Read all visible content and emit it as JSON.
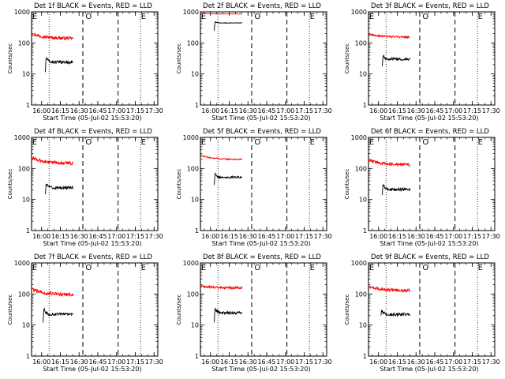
{
  "chart_data": [
    {
      "type": "line",
      "title": "Det 1f BLACK = Events, RED = LLD",
      "xlabel": "Start Time (05-Jul-02 15:53:20)",
      "ylabel": "Counts/sec",
      "ylim": [
        1,
        1000
      ],
      "yscale": "log",
      "xlim": [
        15.866,
        17.55
      ],
      "xticks": [
        "16:00",
        "16:15",
        "16:30",
        "16:45",
        "17:00",
        "17:15",
        "17:30"
      ],
      "yticks": [
        "1",
        "10",
        "100",
        "1000"
      ],
      "markers": [
        {
          "label": "E",
          "t": 15.87,
          "style": "dotted"
        },
        {
          "label": "",
          "t": 16.1,
          "style": "dotted"
        },
        {
          "label": "",
          "t": 16.55,
          "style": "dashed"
        },
        {
          "label": "O",
          "t": 16.58,
          "style": "none"
        },
        {
          "label": "",
          "t": 17.02,
          "style": "dashed"
        },
        {
          "label": "E",
          "t": 17.32,
          "style": "dotted"
        }
      ],
      "series": [
        {
          "name": "LLD",
          "color": "#ff0000",
          "t_start": 15.87,
          "t_end": 16.42,
          "start": 200,
          "level": 140,
          "noise": 0.05
        },
        {
          "name": "Events",
          "color": "#000000",
          "t_start": 16.05,
          "t_end": 16.42,
          "start": 12,
          "peak": 35,
          "level": 24,
          "noise": 0.05
        }
      ]
    },
    {
      "type": "line",
      "title": "Det 2f BLACK = Events, RED = LLD",
      "xlabel": "Start Time (05-Jul-02 15:53:20)",
      "ylabel": "Counts/sec",
      "ylim": [
        1,
        1000
      ],
      "yscale": "log",
      "xlim": [
        15.866,
        17.55
      ],
      "xticks": [
        "16:00",
        "16:15",
        "16:30",
        "16:45",
        "17:00",
        "17:15",
        "17:30"
      ],
      "yticks": [
        "1",
        "10",
        "100",
        "1000"
      ],
      "markers": [
        {
          "label": "E",
          "t": 15.87,
          "style": "dotted"
        },
        {
          "label": "",
          "t": 16.1,
          "style": "dotted"
        },
        {
          "label": "",
          "t": 16.55,
          "style": "dashed"
        },
        {
          "label": "O",
          "t": 16.58,
          "style": "none"
        },
        {
          "label": "",
          "t": 17.02,
          "style": "dashed"
        },
        {
          "label": "E",
          "t": 17.32,
          "style": "dotted"
        }
      ],
      "series": [
        {
          "name": "LLD",
          "color": "#ff0000",
          "t_start": 15.87,
          "t_end": 16.42,
          "start": 900,
          "level": 850,
          "noise": 0.005
        },
        {
          "name": "Events",
          "color": "#000000",
          "t_start": 16.05,
          "t_end": 16.42,
          "start": 250,
          "peak": 480,
          "level": 440,
          "noise": 0.01
        }
      ]
    },
    {
      "type": "line",
      "title": "Det 3f BLACK = Events, RED = LLD",
      "xlabel": "Start Time (05-Jul-02 15:53:20)",
      "ylabel": "Counts/sec",
      "ylim": [
        1,
        1000
      ],
      "yscale": "log",
      "xlim": [
        15.866,
        17.55
      ],
      "xticks": [
        "16:00",
        "16:15",
        "16:30",
        "16:45",
        "17:00",
        "17:15",
        "17:30"
      ],
      "yticks": [
        "1",
        "10",
        "100",
        "1000"
      ],
      "markers": [
        {
          "label": "E",
          "t": 15.87,
          "style": "dotted"
        },
        {
          "label": "",
          "t": 16.1,
          "style": "dotted"
        },
        {
          "label": "",
          "t": 16.55,
          "style": "dashed"
        },
        {
          "label": "O",
          "t": 16.58,
          "style": "none"
        },
        {
          "label": "",
          "t": 17.02,
          "style": "dashed"
        },
        {
          "label": "E",
          "t": 17.32,
          "style": "dotted"
        }
      ],
      "series": [
        {
          "name": "LLD",
          "color": "#ff0000",
          "t_start": 15.87,
          "t_end": 16.42,
          "start": 190,
          "level": 155,
          "noise": 0.03
        },
        {
          "name": "Events",
          "color": "#000000",
          "t_start": 16.05,
          "t_end": 16.42,
          "start": 18,
          "peak": 40,
          "level": 30,
          "noise": 0.04
        }
      ]
    },
    {
      "type": "line",
      "title": "Det 4f BLACK = Events, RED = LLD",
      "xlabel": "Start Time (05-Jul-02 15:53:20)",
      "ylabel": "Counts/sec",
      "ylim": [
        1,
        1000
      ],
      "yscale": "log",
      "xlim": [
        15.866,
        17.55
      ],
      "xticks": [
        "16:00",
        "16:15",
        "16:30",
        "16:45",
        "17:00",
        "17:15",
        "17:30"
      ],
      "yticks": [
        "1",
        "10",
        "100",
        "1000"
      ],
      "markers": [
        {
          "label": "E",
          "t": 15.87,
          "style": "dotted"
        },
        {
          "label": "",
          "t": 16.1,
          "style": "dotted"
        },
        {
          "label": "",
          "t": 16.55,
          "style": "dashed"
        },
        {
          "label": "O",
          "t": 16.58,
          "style": "none"
        },
        {
          "label": "",
          "t": 17.02,
          "style": "dashed"
        },
        {
          "label": "E",
          "t": 17.32,
          "style": "dotted"
        }
      ],
      "series": [
        {
          "name": "LLD",
          "color": "#ff0000",
          "t_start": 15.87,
          "t_end": 16.42,
          "start": 220,
          "level": 145,
          "noise": 0.06
        },
        {
          "name": "Events",
          "color": "#000000",
          "t_start": 16.05,
          "t_end": 16.42,
          "start": 15,
          "peak": 32,
          "level": 24,
          "noise": 0.05
        }
      ]
    },
    {
      "type": "line",
      "title": "Det 5f BLACK = Events, RED = LLD",
      "xlabel": "Start Time (05-Jul-02 15:53:20)",
      "ylabel": "Counts/sec",
      "ylim": [
        1,
        1000
      ],
      "yscale": "log",
      "xlim": [
        15.866,
        17.55
      ],
      "xticks": [
        "16:00",
        "16:15",
        "16:30",
        "16:45",
        "17:00",
        "17:15",
        "17:30"
      ],
      "yticks": [
        "1",
        "10",
        "100",
        "1000"
      ],
      "markers": [
        {
          "label": "E",
          "t": 15.87,
          "style": "dotted"
        },
        {
          "label": "",
          "t": 16.1,
          "style": "dotted"
        },
        {
          "label": "",
          "t": 16.55,
          "style": "dashed"
        },
        {
          "label": "O",
          "t": 16.58,
          "style": "none"
        },
        {
          "label": "",
          "t": 17.02,
          "style": "dashed"
        },
        {
          "label": "E",
          "t": 17.32,
          "style": "dotted"
        }
      ],
      "series": [
        {
          "name": "LLD",
          "color": "#ff0000",
          "t_start": 15.87,
          "t_end": 16.42,
          "start": 260,
          "level": 195,
          "noise": 0.02
        },
        {
          "name": "Events",
          "color": "#000000",
          "t_start": 16.05,
          "t_end": 16.42,
          "start": 30,
          "peak": 70,
          "level": 52,
          "noise": 0.03
        }
      ]
    },
    {
      "type": "line",
      "title": "Det 6f BLACK = Events, RED = LLD",
      "xlabel": "Start Time (05-Jul-02 15:53:20)",
      "ylabel": "Counts/sec",
      "ylim": [
        1,
        1000
      ],
      "yscale": "log",
      "xlim": [
        15.866,
        17.55
      ],
      "xticks": [
        "16:00",
        "16:15",
        "16:30",
        "16:45",
        "17:00",
        "17:15",
        "17:30"
      ],
      "yticks": [
        "1",
        "10",
        "100",
        "1000"
      ],
      "markers": [
        {
          "label": "E",
          "t": 15.87,
          "style": "dotted"
        },
        {
          "label": "",
          "t": 16.1,
          "style": "dotted"
        },
        {
          "label": "",
          "t": 16.55,
          "style": "dashed"
        },
        {
          "label": "O",
          "t": 16.58,
          "style": "none"
        },
        {
          "label": "",
          "t": 17.02,
          "style": "dashed"
        },
        {
          "label": "E",
          "t": 17.32,
          "style": "dotted"
        }
      ],
      "series": [
        {
          "name": "LLD",
          "color": "#ff0000",
          "t_start": 15.87,
          "t_end": 16.42,
          "start": 190,
          "level": 130,
          "noise": 0.05
        },
        {
          "name": "Events",
          "color": "#000000",
          "t_start": 16.05,
          "t_end": 16.42,
          "start": 14,
          "peak": 30,
          "level": 21,
          "noise": 0.05
        }
      ]
    },
    {
      "type": "line",
      "title": "Det 7f BLACK = Events, RED = LLD",
      "xlabel": "Start Time (05-Jul-02 15:53:20)",
      "ylabel": "Counts/sec",
      "ylim": [
        1,
        1000
      ],
      "yscale": "log",
      "xlim": [
        15.866,
        17.55
      ],
      "xticks": [
        "16:00",
        "16:15",
        "16:30",
        "16:45",
        "17:00",
        "17:15",
        "17:30"
      ],
      "yticks": [
        "1",
        "10",
        "100",
        "1000"
      ],
      "markers": [
        {
          "label": "E",
          "t": 15.87,
          "style": "dotted"
        },
        {
          "label": "",
          "t": 16.1,
          "style": "dotted"
        },
        {
          "label": "",
          "t": 16.55,
          "style": "dashed"
        },
        {
          "label": "O",
          "t": 16.58,
          "style": "none"
        },
        {
          "label": "",
          "t": 17.02,
          "style": "dashed"
        },
        {
          "label": "E",
          "t": 17.32,
          "style": "dotted"
        }
      ],
      "series": [
        {
          "name": "LLD",
          "color": "#ff0000",
          "t_start": 15.87,
          "t_end": 16.42,
          "start": 140,
          "level": 95,
          "noise": 0.06
        },
        {
          "name": "Events",
          "color": "#000000",
          "t_start": 16.02,
          "t_end": 16.42,
          "start": 12,
          "peak": 32,
          "level": 22,
          "noise": 0.05
        }
      ]
    },
    {
      "type": "line",
      "title": "Det 8f BLACK = Events, RED = LLD",
      "xlabel": "Start Time (05-Jul-02 15:53:20)",
      "ylabel": "Counts/sec",
      "ylim": [
        1,
        1000
      ],
      "yscale": "log",
      "xlim": [
        15.866,
        17.55
      ],
      "xticks": [
        "16:00",
        "16:15",
        "16:30",
        "16:45",
        "17:00",
        "17:15",
        "17:30"
      ],
      "yticks": [
        "1",
        "10",
        "100",
        "1000"
      ],
      "markers": [
        {
          "label": "E",
          "t": 15.87,
          "style": "dotted"
        },
        {
          "label": "",
          "t": 16.1,
          "style": "dotted"
        },
        {
          "label": "",
          "t": 16.55,
          "style": "dashed"
        },
        {
          "label": "O",
          "t": 16.58,
          "style": "none"
        },
        {
          "label": "",
          "t": 17.02,
          "style": "dashed"
        },
        {
          "label": "E",
          "t": 17.32,
          "style": "dotted"
        }
      ],
      "series": [
        {
          "name": "LLD",
          "color": "#ff0000",
          "t_start": 15.87,
          "t_end": 16.42,
          "start": 180,
          "level": 160,
          "noise": 0.04
        },
        {
          "name": "Events",
          "color": "#000000",
          "t_start": 16.05,
          "t_end": 16.42,
          "start": 12,
          "peak": 36,
          "level": 25,
          "noise": 0.05
        }
      ]
    },
    {
      "type": "line",
      "title": "Det 9f BLACK = Events, RED = LLD",
      "xlabel": "Start Time (05-Jul-02 15:53:20)",
      "ylabel": "Counts/sec",
      "ylim": [
        1,
        1000
      ],
      "yscale": "log",
      "xlim": [
        15.866,
        17.55
      ],
      "xticks": [
        "16:00",
        "16:15",
        "16:30",
        "16:45",
        "17:00",
        "17:15",
        "17:30"
      ],
      "yticks": [
        "1",
        "10",
        "100",
        "1000"
      ],
      "markers": [
        {
          "label": "E",
          "t": 15.87,
          "style": "dotted"
        },
        {
          "label": "",
          "t": 16.1,
          "style": "dotted"
        },
        {
          "label": "",
          "t": 16.55,
          "style": "dashed"
        },
        {
          "label": "O",
          "t": 16.58,
          "style": "none"
        },
        {
          "label": "",
          "t": 17.02,
          "style": "dashed"
        },
        {
          "label": "E",
          "t": 17.32,
          "style": "dotted"
        }
      ],
      "series": [
        {
          "name": "LLD",
          "color": "#ff0000",
          "t_start": 15.87,
          "t_end": 16.42,
          "start": 170,
          "level": 130,
          "noise": 0.05
        },
        {
          "name": "Events",
          "color": "#000000",
          "t_start": 16.03,
          "t_end": 16.42,
          "start": 20,
          "peak": 30,
          "level": 22,
          "noise": 0.05
        }
      ]
    }
  ]
}
